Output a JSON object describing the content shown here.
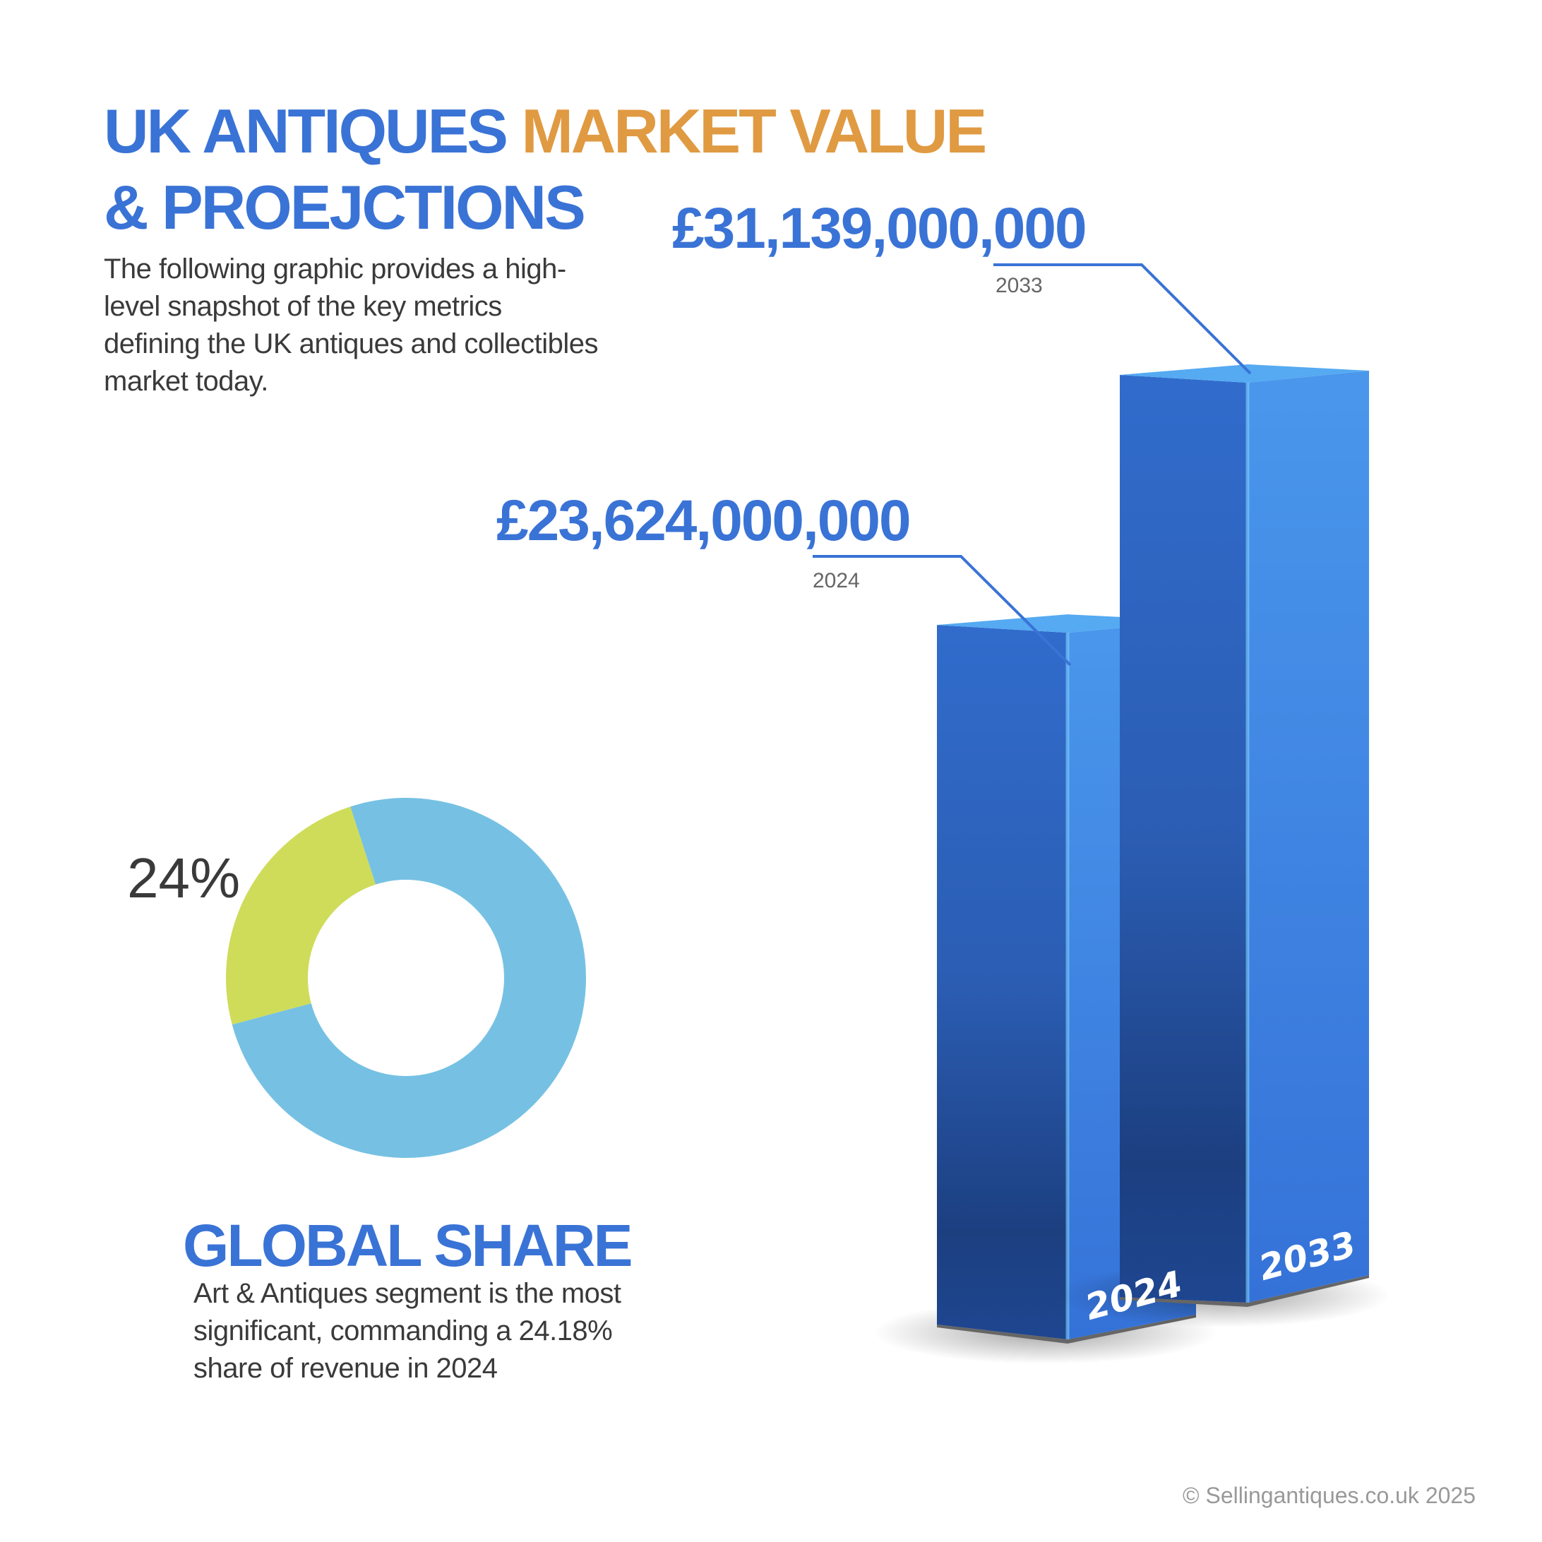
{
  "header": {
    "title_part1": "UK ANTIQUES ",
    "title_part2": "MARKET VALUE",
    "title_line2": "& PROEJCTIONS",
    "description": "The following graphic provides a high-level snapshot of the key metrics defining the UK antiques and collectibles market today."
  },
  "colors": {
    "primary_blue": "#3a73d6",
    "accent_orange": "#e09a42",
    "donut_main": "#76c1e3",
    "donut_highlight": "#cfdc5a"
  },
  "chart_data": [
    {
      "type": "bar",
      "categories": [
        "2024",
        "2033"
      ],
      "values": [
        23624000000,
        31139000000
      ],
      "data_labels": [
        "£23,624,000,000",
        "£31,139,000,000"
      ],
      "style": "3d"
    },
    {
      "type": "pie",
      "variant": "donut",
      "values": [
        24.18,
        75.82
      ],
      "data_labels": [
        "24%"
      ],
      "title": "GLOBAL SHARE",
      "caption": "Art & Antiques segment is the most significant, commanding a 24.18% share of revenue in 2024"
    }
  ],
  "footer": "© Sellingantiques.co.uk 2025"
}
